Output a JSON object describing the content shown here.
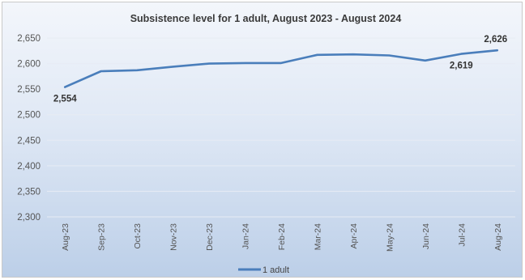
{
  "chart_data": {
    "type": "line",
    "title": "Subsistence level for 1 adult, August 2023 - August 2024",
    "categories": [
      "Aug-23",
      "Sep-23",
      "Oct-23",
      "Nov-23",
      "Dec-23",
      "Jan-24",
      "Feb-24",
      "Mar-24",
      "Apr-24",
      "May-24",
      "Jun-24",
      "Jul-24",
      "Aug-24"
    ],
    "series": [
      {
        "name": "1 adult",
        "color": "#4a7ebb",
        "values": [
          2554,
          2585,
          2587,
          2594,
          2600,
          2601,
          2601,
          2617,
          2618,
          2616,
          2606,
          2619,
          2626
        ]
      }
    ],
    "ylim": [
      2300,
      2650
    ],
    "yticks": [
      "2,300",
      "2,350",
      "2,400",
      "2,450",
      "2,500",
      "2,550",
      "2,600",
      "2,650"
    ],
    "ytick_values": [
      2300,
      2350,
      2400,
      2450,
      2500,
      2550,
      2600,
      2650
    ],
    "data_labels": [
      {
        "index": 0,
        "text": "2,554",
        "position": "below"
      },
      {
        "index": 11,
        "text": "2,619",
        "position": "below"
      },
      {
        "index": 12,
        "text": "2,626",
        "position": "above"
      }
    ],
    "grid": true,
    "legend": "bottom",
    "xlabel": "",
    "ylabel": ""
  }
}
